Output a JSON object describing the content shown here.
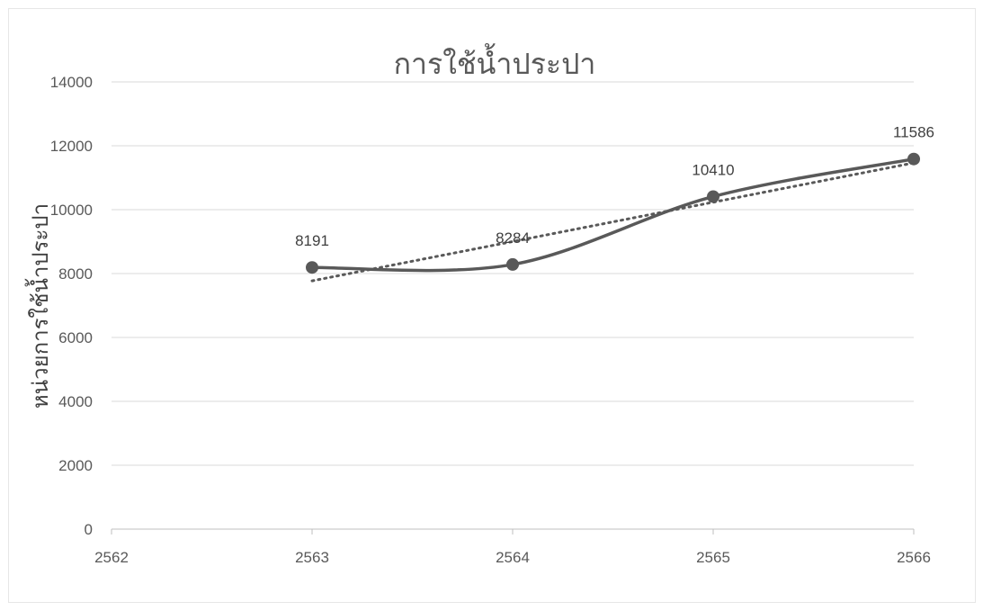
{
  "chart_data": {
    "type": "scatter",
    "title": "การใช้น้ำประปา",
    "xlabel": "",
    "ylabel": "หน่วยการใช้น้ำประปา",
    "xlim": [
      2562,
      2566
    ],
    "ylim": [
      0,
      14000
    ],
    "x_ticks": [
      2562,
      2563,
      2564,
      2565,
      2566
    ],
    "y_ticks": [
      0,
      2000,
      4000,
      6000,
      8000,
      10000,
      12000,
      14000
    ],
    "grid": true,
    "smooth_line": true,
    "trendline": "linear",
    "series": [
      {
        "x": [
          2563,
          2564,
          2565,
          2566
        ],
        "y": [
          8191,
          8284,
          10410,
          11586
        ],
        "data_labels": [
          "8191",
          "8284",
          "10410",
          "11586"
        ]
      }
    ],
    "colors": {
      "series": "#595959",
      "trendline": "#595959",
      "grid": "#d9d9d9",
      "axis": "#bfbfbf"
    }
  }
}
